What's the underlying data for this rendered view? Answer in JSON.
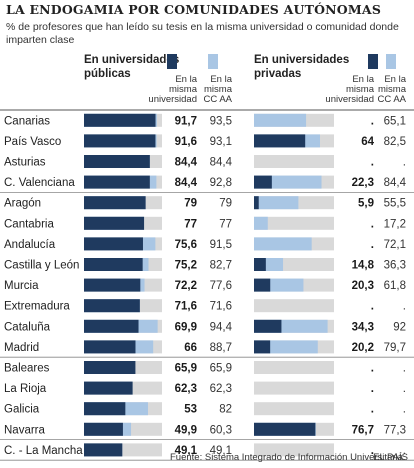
{
  "chart_data": {
    "type": "bar",
    "title": "LA ENDOGAMIA POR COMUNIDADES AUTÓNOMAS",
    "subtitle": "% de profesores que han leído su tesis en la misma universidad o comunidad donde imparten clase",
    "source": "Fuente: Sistema Integrado de Información Universitaria.",
    "credit": "EL PAÍS",
    "panels": [
      {
        "name_line1": "En universidades",
        "name_line2": "públicas",
        "col1_line1": "En la",
        "col1_line2": "misma",
        "col1_line3": "universidad",
        "col2_line1": "En la",
        "col2_line2": "misma",
        "col2_line3": "CC AA"
      },
      {
        "name_line1": "En universidades",
        "name_line2": "privadas",
        "col1_line1": "En la",
        "col1_line2": "misma",
        "col1_line3": "universidad",
        "col2_line1": "En la",
        "col2_line2": "misma",
        "col2_line3": "CC AA"
      }
    ],
    "xlim": [
      0,
      100
    ],
    "colors": {
      "dark": "#1f3a5f",
      "light": "#a9c6e4",
      "track": "#d9d9d9"
    },
    "rows": [
      {
        "region": "Canarias",
        "pub_uni": 91.7,
        "pub_uni_label": "91,7",
        "pub_cc": 93.5,
        "pub_cc_label": "93,5",
        "priv_uni": null,
        "priv_uni_label": ".",
        "priv_cc": 65.1,
        "priv_cc_label": "65,1"
      },
      {
        "region": "País Vasco",
        "pub_uni": 91.6,
        "pub_uni_label": "91,6",
        "pub_cc": 93.1,
        "pub_cc_label": "93,1",
        "priv_uni": 64,
        "priv_uni_label": "64",
        "priv_cc": 82.5,
        "priv_cc_label": "82,5"
      },
      {
        "region": "Asturias",
        "pub_uni": 84.4,
        "pub_uni_label": "84,4",
        "pub_cc": 84.4,
        "pub_cc_label": "84,4",
        "priv_uni": null,
        "priv_uni_label": ".",
        "priv_cc": null,
        "priv_cc_label": "."
      },
      {
        "region": "C. Valenciana",
        "pub_uni": 84.4,
        "pub_uni_label": "84,4",
        "pub_cc": 92.8,
        "pub_cc_label": "92,8",
        "priv_uni": 22.3,
        "priv_uni_label": "22,3",
        "priv_cc": 84.4,
        "priv_cc_label": "84,4"
      },
      {
        "region": "Aragón",
        "pub_uni": 79,
        "pub_uni_label": "79",
        "pub_cc": 79,
        "pub_cc_label": "79",
        "priv_uni": 5.9,
        "priv_uni_label": "5,9",
        "priv_cc": 55.5,
        "priv_cc_label": "55,5"
      },
      {
        "region": "Cantabria",
        "pub_uni": 77,
        "pub_uni_label": "77",
        "pub_cc": 77,
        "pub_cc_label": "77",
        "priv_uni": null,
        "priv_uni_label": ".",
        "priv_cc": 17.2,
        "priv_cc_label": "17,2"
      },
      {
        "region": "Andalucía",
        "pub_uni": 75.6,
        "pub_uni_label": "75,6",
        "pub_cc": 91.5,
        "pub_cc_label": "91,5",
        "priv_uni": null,
        "priv_uni_label": ".",
        "priv_cc": 72.1,
        "priv_cc_label": "72,1"
      },
      {
        "region": "Castilla y León",
        "pub_uni": 75.2,
        "pub_uni_label": "75,2",
        "pub_cc": 82.7,
        "pub_cc_label": "82,7",
        "priv_uni": 14.8,
        "priv_uni_label": "14,8",
        "priv_cc": 36.3,
        "priv_cc_label": "36,3"
      },
      {
        "region": "Murcia",
        "pub_uni": 72.2,
        "pub_uni_label": "72,2",
        "pub_cc": 77.6,
        "pub_cc_label": "77,6",
        "priv_uni": 20.3,
        "priv_uni_label": "20,3",
        "priv_cc": 61.8,
        "priv_cc_label": "61,8"
      },
      {
        "region": "Extremadura",
        "pub_uni": 71.6,
        "pub_uni_label": "71,6",
        "pub_cc": 71.6,
        "pub_cc_label": "71,6",
        "priv_uni": null,
        "priv_uni_label": ".",
        "priv_cc": null,
        "priv_cc_label": "."
      },
      {
        "region": "Cataluña",
        "pub_uni": 69.9,
        "pub_uni_label": "69,9",
        "pub_cc": 94.4,
        "pub_cc_label": "94,4",
        "priv_uni": 34.3,
        "priv_uni_label": "34,3",
        "priv_cc": 92,
        "priv_cc_label": "92"
      },
      {
        "region": "Madrid",
        "pub_uni": 66,
        "pub_uni_label": "66",
        "pub_cc": 88.7,
        "pub_cc_label": "88,7",
        "priv_uni": 20.2,
        "priv_uni_label": "20,2",
        "priv_cc": 79.7,
        "priv_cc_label": "79,7"
      },
      {
        "region": "Baleares",
        "pub_uni": 65.9,
        "pub_uni_label": "65,9",
        "pub_cc": 65.9,
        "pub_cc_label": "65,9",
        "priv_uni": null,
        "priv_uni_label": ".",
        "priv_cc": null,
        "priv_cc_label": "."
      },
      {
        "region": "La Rioja",
        "pub_uni": 62.3,
        "pub_uni_label": "62,3",
        "pub_cc": 62.3,
        "pub_cc_label": "62,3",
        "priv_uni": null,
        "priv_uni_label": ".",
        "priv_cc": null,
        "priv_cc_label": "."
      },
      {
        "region": "Galicia",
        "pub_uni": 53,
        "pub_uni_label": "53",
        "pub_cc": 82,
        "pub_cc_label": "82",
        "priv_uni": null,
        "priv_uni_label": ".",
        "priv_cc": null,
        "priv_cc_label": "."
      },
      {
        "region": "Navarra",
        "pub_uni": 49.9,
        "pub_uni_label": "49,9",
        "pub_cc": 60.3,
        "pub_cc_label": "60,3",
        "priv_uni": 76.7,
        "priv_uni_label": "76,7",
        "priv_cc": 77.3,
        "priv_cc_label": "77,3"
      },
      {
        "region": "C. - La Mancha",
        "pub_uni": 49.1,
        "pub_uni_label": "49,1",
        "pub_cc": 49.1,
        "pub_cc_label": "49,1",
        "priv_uni": null,
        "priv_uni_label": ".",
        "priv_cc": null,
        "priv_cc_label": "."
      }
    ]
  }
}
